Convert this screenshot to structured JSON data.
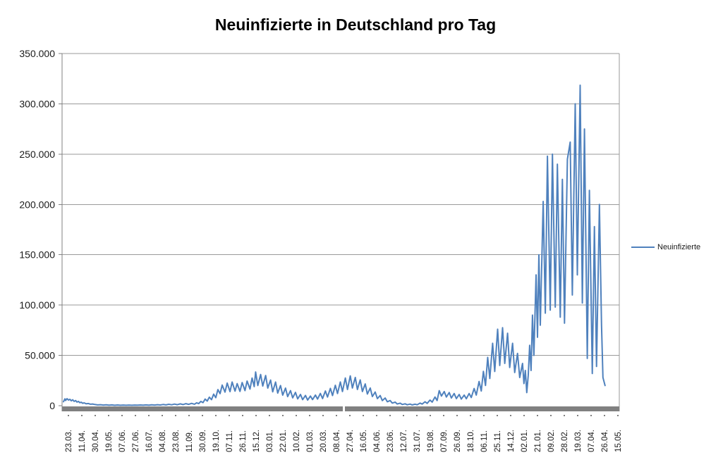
{
  "chart_data": {
    "type": "line",
    "title": "Neuinfizierte in Deutschland pro Tag",
    "xlabel": "",
    "ylabel": "",
    "ylim": [
      0,
      350000
    ],
    "ytick_step": 50000,
    "ytick_values": [
      0,
      50000,
      100000,
      150000,
      200000,
      250000,
      300000,
      350000
    ],
    "ytick_labels": [
      "0",
      "50.000",
      "100.000",
      "150.000",
      "200.000",
      "250.000",
      "300.000",
      "350.000"
    ],
    "xtick_labels": [
      "23.03.",
      "11.04.",
      "30.04.",
      "19.05.",
      "07.06.",
      "27.06.",
      "16.07.",
      "04.08.",
      "23.08.",
      "11.09.",
      "30.09.",
      "19.10.",
      "07.11.",
      "26.11.",
      "15.12.",
      "03.01.",
      "22.01.",
      "10.02.",
      "01.03.",
      "20.03.",
      "08.04.",
      "27.04.",
      "16.05.",
      "04.06.",
      "23.06.",
      "12.07.",
      "31.07.",
      "19.08.",
      "07.09.",
      "26.09.",
      "18.10.",
      "06.11.",
      "25.11.",
      "14.12.",
      "02.01.",
      "21.01.",
      "09.02.",
      "28.02.",
      "19.03.",
      "07.04.",
      "26.04.",
      "15.05."
    ],
    "days_per_xtick": 19,
    "grid": true,
    "legend_position": "right",
    "colors": {
      "series": "#4F81BD",
      "gridline": "#9a9a9a",
      "axis": "#808080",
      "axis_bar": "#808080",
      "text": "#1a1a1a"
    },
    "series": [
      {
        "name": "Neuinfizierte",
        "color": "#4F81BD",
        "points": [
          [
            0,
            4000
          ],
          [
            2,
            6800
          ],
          [
            3,
            5200
          ],
          [
            5,
            7000
          ],
          [
            7,
            5600
          ],
          [
            9,
            6400
          ],
          [
            11,
            4800
          ],
          [
            13,
            5900
          ],
          [
            15,
            4300
          ],
          [
            17,
            5100
          ],
          [
            19,
            3600
          ],
          [
            21,
            4300
          ],
          [
            23,
            3000
          ],
          [
            25,
            3400
          ],
          [
            27,
            2400
          ],
          [
            29,
            2800
          ],
          [
            32,
            1900
          ],
          [
            35,
            2200
          ],
          [
            38,
            1500
          ],
          [
            41,
            1700
          ],
          [
            44,
            1200
          ],
          [
            48,
            800
          ],
          [
            52,
            1000
          ],
          [
            56,
            600
          ],
          [
            60,
            900
          ],
          [
            64,
            500
          ],
          [
            68,
            800
          ],
          [
            72,
            450
          ],
          [
            76,
            700
          ],
          [
            80,
            420
          ],
          [
            84,
            650
          ],
          [
            88,
            400
          ],
          [
            92,
            600
          ],
          [
            96,
            420
          ],
          [
            100,
            650
          ],
          [
            104,
            480
          ],
          [
            108,
            720
          ],
          [
            112,
            520
          ],
          [
            116,
            800
          ],
          [
            120,
            560
          ],
          [
            124,
            900
          ],
          [
            128,
            620
          ],
          [
            132,
            1000
          ],
          [
            136,
            700
          ],
          [
            140,
            1200
          ],
          [
            144,
            800
          ],
          [
            148,
            1400
          ],
          [
            152,
            900
          ],
          [
            156,
            1600
          ],
          [
            160,
            1000
          ],
          [
            164,
            1800
          ],
          [
            168,
            1100
          ],
          [
            172,
            2000
          ],
          [
            176,
            1300
          ],
          [
            180,
            2300
          ],
          [
            184,
            1500
          ],
          [
            187,
            2900
          ],
          [
            190,
            2100
          ],
          [
            193,
            4300
          ],
          [
            196,
            3100
          ],
          [
            199,
            6600
          ],
          [
            202,
            4600
          ],
          [
            205,
            8500
          ],
          [
            208,
            6000
          ],
          [
            211,
            11500
          ],
          [
            214,
            8000
          ],
          [
            217,
            16000
          ],
          [
            220,
            12000
          ],
          [
            223,
            20500
          ],
          [
            227,
            13500
          ],
          [
            230,
            22500
          ],
          [
            234,
            14000
          ],
          [
            237,
            23500
          ],
          [
            241,
            14500
          ],
          [
            244,
            22000
          ],
          [
            248,
            14200
          ],
          [
            251,
            23000
          ],
          [
            255,
            15000
          ],
          [
            258,
            24500
          ],
          [
            262,
            16500
          ],
          [
            265,
            27500
          ],
          [
            268,
            19000
          ],
          [
            270,
            33500
          ],
          [
            273,
            20000
          ],
          [
            277,
            31000
          ],
          [
            280,
            19500
          ],
          [
            284,
            30000
          ],
          [
            287,
            17500
          ],
          [
            291,
            25500
          ],
          [
            294,
            13800
          ],
          [
            298,
            23500
          ],
          [
            301,
            12500
          ],
          [
            305,
            20000
          ],
          [
            308,
            10500
          ],
          [
            312,
            17500
          ],
          [
            315,
            9000
          ],
          [
            319,
            15000
          ],
          [
            322,
            7800
          ],
          [
            326,
            13200
          ],
          [
            329,
            6800
          ],
          [
            333,
            11200
          ],
          [
            336,
            6000
          ],
          [
            340,
            10200
          ],
          [
            343,
            5600
          ],
          [
            347,
            9600
          ],
          [
            350,
            6100
          ],
          [
            354,
            10600
          ],
          [
            357,
            6600
          ],
          [
            361,
            12200
          ],
          [
            364,
            7100
          ],
          [
            368,
            14600
          ],
          [
            371,
            8600
          ],
          [
            375,
            17200
          ],
          [
            378,
            10100
          ],
          [
            382,
            20300
          ],
          [
            385,
            12100
          ],
          [
            389,
            23600
          ],
          [
            392,
            14100
          ],
          [
            396,
            27500
          ],
          [
            399,
            16100
          ],
          [
            403,
            29600
          ],
          [
            406,
            17600
          ],
          [
            410,
            28100
          ],
          [
            413,
            16100
          ],
          [
            417,
            25600
          ],
          [
            420,
            14100
          ],
          [
            424,
            21600
          ],
          [
            427,
            11600
          ],
          [
            431,
            17600
          ],
          [
            434,
            9100
          ],
          [
            438,
            13600
          ],
          [
            441,
            7100
          ],
          [
            445,
            10100
          ],
          [
            448,
            5100
          ],
          [
            452,
            7600
          ],
          [
            455,
            3900
          ],
          [
            459,
            5100
          ],
          [
            462,
            2600
          ],
          [
            466,
            3600
          ],
          [
            469,
            1700
          ],
          [
            473,
            2500
          ],
          [
            476,
            1200
          ],
          [
            480,
            1900
          ],
          [
            483,
            900
          ],
          [
            487,
            1600
          ],
          [
            490,
            800
          ],
          [
            494,
            1500
          ],
          [
            497,
            900
          ],
          [
            501,
            2600
          ],
          [
            504,
            1600
          ],
          [
            508,
            3900
          ],
          [
            511,
            2300
          ],
          [
            515,
            5600
          ],
          [
            518,
            3600
          ],
          [
            522,
            8600
          ],
          [
            525,
            5100
          ],
          [
            528,
            15000
          ],
          [
            531,
            9600
          ],
          [
            535,
            14100
          ],
          [
            538,
            8600
          ],
          [
            542,
            13100
          ],
          [
            545,
            7600
          ],
          [
            549,
            12100
          ],
          [
            552,
            7100
          ],
          [
            556,
            11100
          ],
          [
            559,
            6600
          ],
          [
            563,
            10600
          ],
          [
            566,
            6900
          ],
          [
            570,
            12100
          ],
          [
            573,
            8100
          ],
          [
            577,
            17100
          ],
          [
            580,
            10600
          ],
          [
            584,
            24100
          ],
          [
            587,
            14600
          ],
          [
            590,
            34100
          ],
          [
            593,
            20100
          ],
          [
            596,
            48000
          ],
          [
            599,
            27000
          ],
          [
            603,
            62000
          ],
          [
            606,
            34000
          ],
          [
            610,
            76000
          ],
          [
            613,
            40000
          ],
          [
            617,
            77500
          ],
          [
            620,
            42000
          ],
          [
            624,
            72000
          ],
          [
            627,
            38000
          ],
          [
            631,
            62000
          ],
          [
            634,
            33000
          ],
          [
            638,
            52000
          ],
          [
            641,
            28000
          ],
          [
            645,
            42000
          ],
          [
            647,
            22000
          ],
          [
            649,
            35000
          ],
          [
            651,
            13000
          ],
          [
            653,
            30000
          ],
          [
            655,
            60000
          ],
          [
            657,
            35000
          ],
          [
            659,
            90000
          ],
          [
            661,
            50000
          ],
          [
            664,
            130000
          ],
          [
            666,
            68000
          ],
          [
            668,
            150000
          ],
          [
            670,
            80000
          ],
          [
            674,
            203000
          ],
          [
            677,
            92000
          ],
          [
            680,
            248000
          ],
          [
            684,
            95000
          ],
          [
            687,
            250000
          ],
          [
            691,
            98000
          ],
          [
            694,
            240000
          ],
          [
            698,
            88000
          ],
          [
            701,
            225000
          ],
          [
            704,
            82000
          ],
          [
            708,
            245000
          ],
          [
            712,
            262000
          ],
          [
            715,
            110000
          ],
          [
            719,
            300000
          ],
          [
            722,
            130000
          ],
          [
            726,
            318500
          ],
          [
            729,
            102000
          ],
          [
            732,
            275000
          ],
          [
            736,
            47000
          ],
          [
            739,
            214000
          ],
          [
            743,
            32000
          ],
          [
            746,
            178000
          ],
          [
            749,
            39000
          ],
          [
            753,
            200000
          ],
          [
            756,
            80000
          ],
          [
            758,
            28000
          ],
          [
            761,
            20000
          ]
        ]
      }
    ]
  },
  "legend": {
    "label": "Neuinfizierte"
  }
}
